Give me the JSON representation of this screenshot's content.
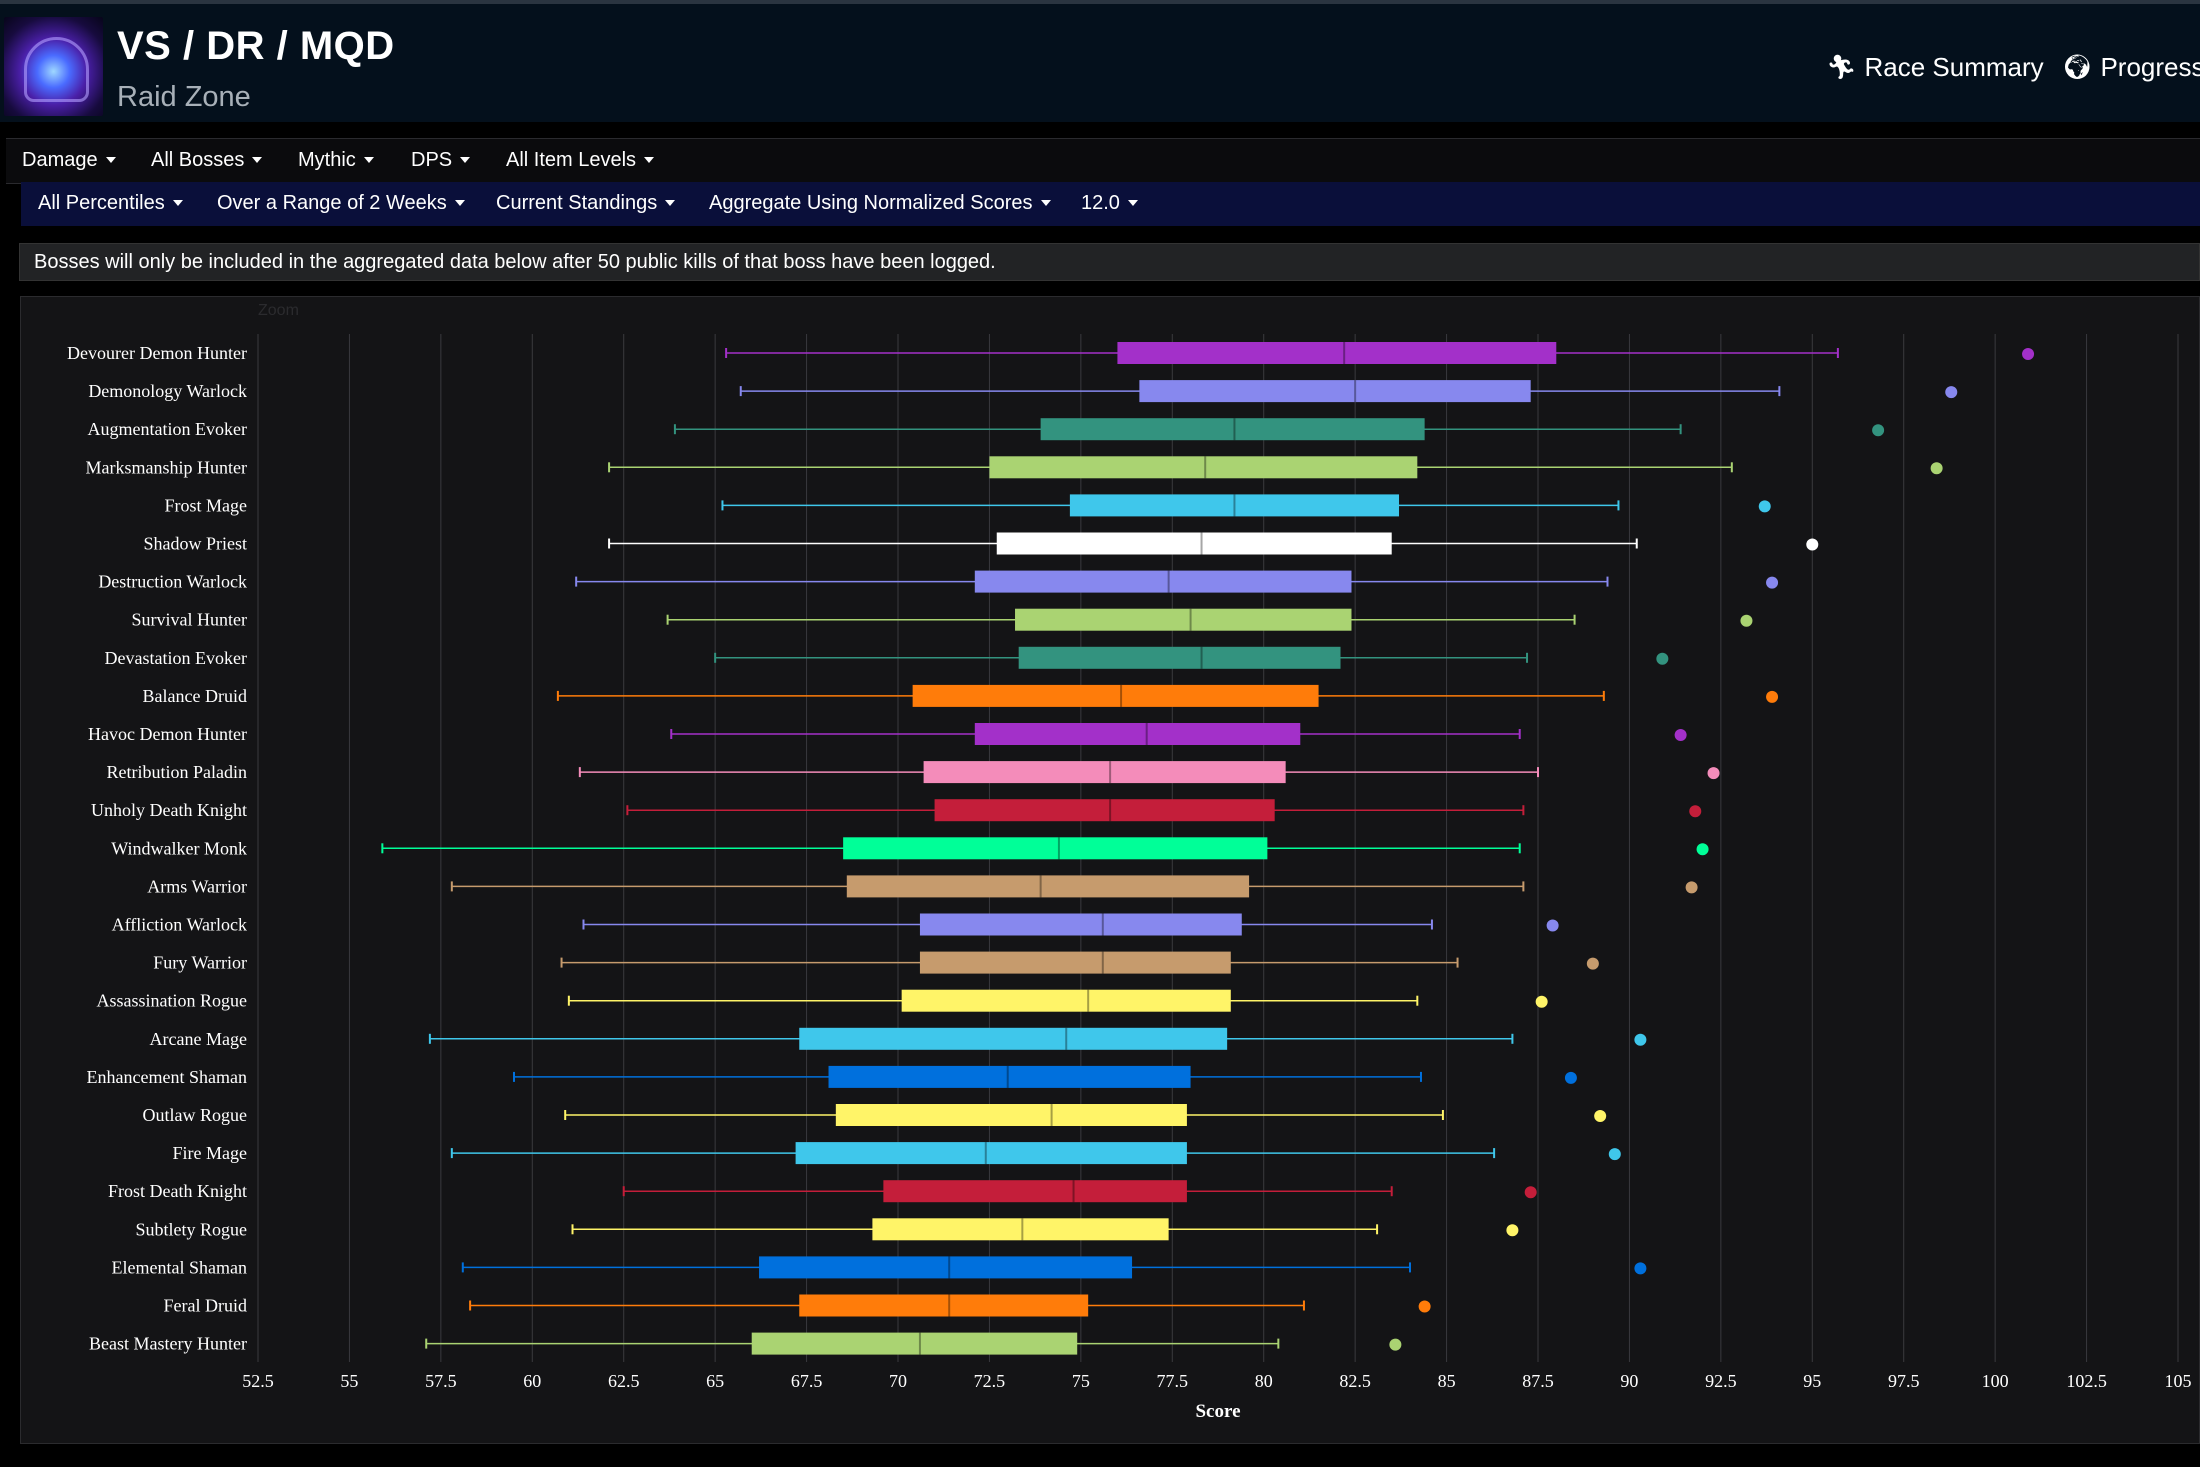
{
  "header": {
    "title": "VS / DR / MQD",
    "subtitle": "Raid Zone",
    "nav": [
      {
        "label": "Race Summary",
        "icon": "runner-icon"
      },
      {
        "label": "Progress",
        "icon": "globe-icon"
      }
    ]
  },
  "filters_row1": [
    "Damage",
    "All Bosses",
    "Mythic",
    "DPS",
    "All Item Levels"
  ],
  "filters_row2": [
    "All Percentiles",
    "Over a Range of 2 Weeks",
    "Current Standings",
    "Aggregate Using Normalized Scores",
    "12.0"
  ],
  "notice": "Bosses will only be included in the aggregated data below after 50 public kills of that boss have been logged.",
  "zoom_label": "Zoom",
  "colors": {
    "panel": "#141416",
    "grid": "#3a3a3e",
    "text": "#ffffff"
  },
  "chart_data": {
    "type": "boxplot",
    "orientation": "horizontal",
    "xlabel": "Score",
    "xlim": [
      52.5,
      105
    ],
    "xticks": [
      52.5,
      55,
      57.5,
      60,
      62.5,
      65,
      67.5,
      70,
      72.5,
      75,
      77.5,
      80,
      82.5,
      85,
      87.5,
      90,
      92.5,
      95,
      97.5,
      100,
      102.5,
      105
    ],
    "series": [
      {
        "name": "Devourer Demon Hunter",
        "color": "#a330c9",
        "min": 65.3,
        "q1": 76.0,
        "median": 82.2,
        "q3": 88.0,
        "max": 95.7,
        "outlier": 100.9
      },
      {
        "name": "Demonology Warlock",
        "color": "#8788ee",
        "min": 65.7,
        "q1": 76.6,
        "median": 82.5,
        "q3": 87.3,
        "max": 94.1,
        "outlier": 98.8
      },
      {
        "name": "Augmentation Evoker",
        "color": "#33937f",
        "min": 63.9,
        "q1": 73.9,
        "median": 79.2,
        "q3": 84.4,
        "max": 91.4,
        "outlier": 96.8
      },
      {
        "name": "Marksmanship Hunter",
        "color": "#aad372",
        "min": 62.1,
        "q1": 72.5,
        "median": 78.4,
        "q3": 84.2,
        "max": 92.8,
        "outlier": 98.4
      },
      {
        "name": "Frost Mage",
        "color": "#3fc7eb",
        "min": 65.2,
        "q1": 74.7,
        "median": 79.2,
        "q3": 83.7,
        "max": 89.7,
        "outlier": 93.7
      },
      {
        "name": "Shadow Priest",
        "color": "#ffffff",
        "min": 62.1,
        "q1": 72.7,
        "median": 78.3,
        "q3": 83.5,
        "max": 90.2,
        "outlier": 95.0
      },
      {
        "name": "Destruction Warlock",
        "color": "#8788ee",
        "min": 61.2,
        "q1": 72.1,
        "median": 77.4,
        "q3": 82.4,
        "max": 89.4,
        "outlier": 93.9
      },
      {
        "name": "Survival Hunter",
        "color": "#aad372",
        "min": 63.7,
        "q1": 73.2,
        "median": 78.0,
        "q3": 82.4,
        "max": 88.5,
        "outlier": 93.2
      },
      {
        "name": "Devastation Evoker",
        "color": "#33937f",
        "min": 65.0,
        "q1": 73.3,
        "median": 78.3,
        "q3": 82.1,
        "max": 87.2,
        "outlier": 90.9
      },
      {
        "name": "Balance Druid",
        "color": "#ff7c0a",
        "min": 60.7,
        "q1": 70.4,
        "median": 76.1,
        "q3": 81.5,
        "max": 89.3,
        "outlier": 93.9
      },
      {
        "name": "Havoc Demon Hunter",
        "color": "#a330c9",
        "min": 63.8,
        "q1": 72.1,
        "median": 76.8,
        "q3": 81.0,
        "max": 87.0,
        "outlier": 91.4
      },
      {
        "name": "Retribution Paladin",
        "color": "#f48cba",
        "min": 61.3,
        "q1": 70.7,
        "median": 75.8,
        "q3": 80.6,
        "max": 87.5,
        "outlier": 92.3
      },
      {
        "name": "Unholy Death Knight",
        "color": "#c41e3a",
        "min": 62.6,
        "q1": 71.0,
        "median": 75.8,
        "q3": 80.3,
        "max": 87.1,
        "outlier": 91.8
      },
      {
        "name": "Windwalker Monk",
        "color": "#00ff98",
        "min": 55.9,
        "q1": 68.5,
        "median": 74.4,
        "q3": 80.1,
        "max": 87.0,
        "outlier": 92.0
      },
      {
        "name": "Arms Warrior",
        "color": "#c69b6d",
        "min": 57.8,
        "q1": 68.6,
        "median": 73.9,
        "q3": 79.6,
        "max": 87.1,
        "outlier": 91.7
      },
      {
        "name": "Affliction Warlock",
        "color": "#8788ee",
        "min": 61.4,
        "q1": 70.6,
        "median": 75.6,
        "q3": 79.4,
        "max": 84.6,
        "outlier": 87.9
      },
      {
        "name": "Fury Warrior",
        "color": "#c69b6d",
        "min": 60.8,
        "q1": 70.6,
        "median": 75.6,
        "q3": 79.1,
        "max": 85.3,
        "outlier": 89.0
      },
      {
        "name": "Assassination Rogue",
        "color": "#fff468",
        "min": 61.0,
        "q1": 70.1,
        "median": 75.2,
        "q3": 79.1,
        "max": 84.2,
        "outlier": 87.6
      },
      {
        "name": "Arcane Mage",
        "color": "#3fc7eb",
        "min": 57.2,
        "q1": 67.3,
        "median": 74.6,
        "q3": 79.0,
        "max": 86.8,
        "outlier": 90.3
      },
      {
        "name": "Enhancement Shaman",
        "color": "#0070dd",
        "min": 59.5,
        "q1": 68.1,
        "median": 73.0,
        "q3": 78.0,
        "max": 84.3,
        "outlier": 88.4
      },
      {
        "name": "Outlaw Rogue",
        "color": "#fff468",
        "min": 60.9,
        "q1": 68.3,
        "median": 74.2,
        "q3": 77.9,
        "max": 84.9,
        "outlier": 89.2
      },
      {
        "name": "Fire Mage",
        "color": "#3fc7eb",
        "min": 57.8,
        "q1": 67.2,
        "median": 72.4,
        "q3": 77.9,
        "max": 86.3,
        "outlier": 89.6
      },
      {
        "name": "Frost Death Knight",
        "color": "#c41e3a",
        "min": 62.5,
        "q1": 69.6,
        "median": 74.8,
        "q3": 77.9,
        "max": 83.5,
        "outlier": 87.3
      },
      {
        "name": "Subtlety Rogue",
        "color": "#fff468",
        "min": 61.1,
        "q1": 69.3,
        "median": 73.4,
        "q3": 77.4,
        "max": 83.1,
        "outlier": 86.8
      },
      {
        "name": "Elemental Shaman",
        "color": "#0070dd",
        "min": 58.1,
        "q1": 66.2,
        "median": 71.4,
        "q3": 76.4,
        "max": 84.0,
        "outlier": 90.3
      },
      {
        "name": "Feral Druid",
        "color": "#ff7c0a",
        "min": 58.3,
        "q1": 67.3,
        "median": 71.4,
        "q3": 75.2,
        "max": 81.1,
        "outlier": 84.4
      },
      {
        "name": "Beast Mastery Hunter",
        "color": "#aad372",
        "min": 57.1,
        "q1": 66.0,
        "median": 70.6,
        "q3": 74.9,
        "max": 80.4,
        "outlier": 83.6
      }
    ]
  }
}
